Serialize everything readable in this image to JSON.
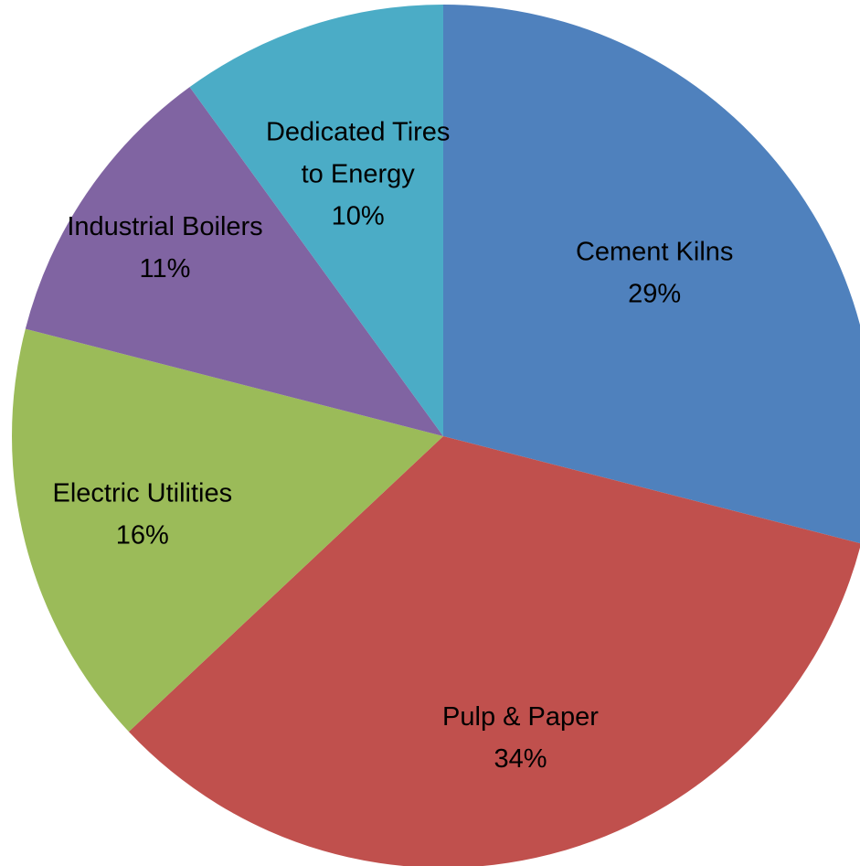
{
  "chart_data": {
    "type": "pie",
    "start_angle_deg": 0,
    "direction": "clockwise",
    "slices": [
      {
        "label_lines": [
          "Cement Kilns"
        ],
        "value": 29,
        "value_label": "29%",
        "color": "#4F81BD"
      },
      {
        "label_lines": [
          "Pulp & Paper"
        ],
        "value": 34,
        "value_label": "34%",
        "color": "#C0504D"
      },
      {
        "label_lines": [
          "Electric Utilities"
        ],
        "value": 16,
        "value_label": "16%",
        "color": "#9BBB59"
      },
      {
        "label_lines": [
          "Industrial Boilers"
        ],
        "value": 11,
        "value_label": "11%",
        "color": "#8064A2"
      },
      {
        "label_lines": [
          "Dedicated Tires",
          "to Energy"
        ],
        "value": 10,
        "value_label": "10%",
        "color": "#4BACC6"
      }
    ]
  }
}
